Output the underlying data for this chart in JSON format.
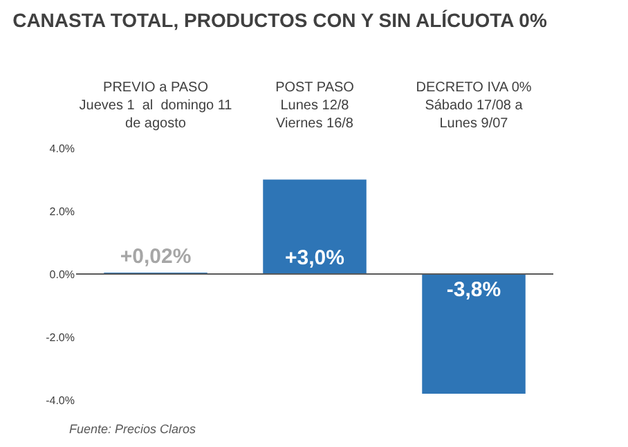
{
  "chart_data": {
    "type": "bar",
    "title": "CANASTA TOTAL, PRODUCTOS CON Y SIN ALÍCUOTA 0%",
    "categories": [
      "PREVIO a PASO\nJueves 1  al  domingo 11\nde agosto",
      "POST PASO\nLunes 12/8\nViernes 16/8",
      "DECRETO IVA 0%\nSábado 17/08 a\nLunes 9/07"
    ],
    "values": [
      0.02,
      3.0,
      -3.8
    ],
    "value_labels": [
      "+0,02%",
      "+3,0%",
      "-3,8%"
    ],
    "color": "#2e75b6",
    "ylim": [
      -4,
      4
    ],
    "yticks": [
      {
        "value": -4,
        "label": "-4.0%"
      },
      {
        "value": -2,
        "label": "-2.0%"
      },
      {
        "value": 0,
        "label": "0.0%"
      },
      {
        "value": 2,
        "label": "2.0%"
      },
      {
        "value": 4,
        "label": "4.0%"
      }
    ],
    "ref_lines": [
      {
        "axis": "y",
        "value": 0,
        "color": "#595959"
      }
    ],
    "legend": false,
    "annotations": [
      "Fuente: Precios Claros"
    ]
  }
}
